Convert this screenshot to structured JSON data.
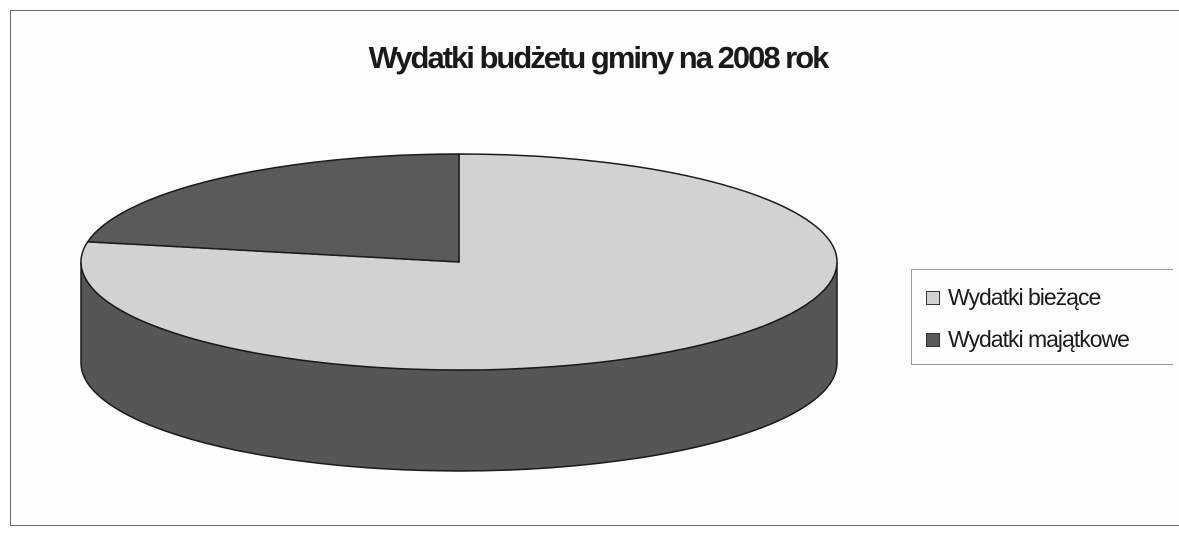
{
  "chart_data": {
    "type": "pie",
    "style": "3d",
    "title": "Wydatki budżetu gminy na 2008 rok",
    "legend_position": "right",
    "slices": [
      {
        "label": "Wydatki bieżące",
        "value": 78,
        "color": "#d2d2d2"
      },
      {
        "label": "Wydatki majątkowe",
        "value": 22,
        "color": "#5a5a5a"
      }
    ]
  },
  "legend": {
    "items": [
      {
        "label": "Wydatki bieżące",
        "color": "#d2d2d2"
      },
      {
        "label": "Wydatki majątkowe",
        "color": "#5a5a5a"
      }
    ]
  }
}
